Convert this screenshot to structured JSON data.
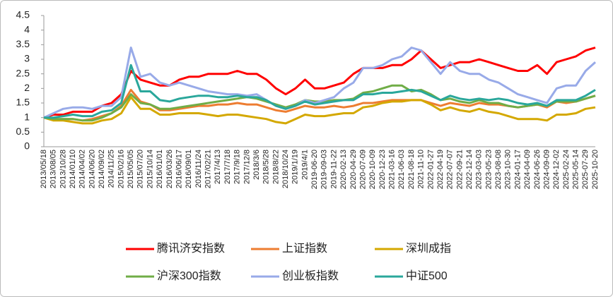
{
  "chart_data": {
    "type": "line",
    "categories": [
      "2013/05/18",
      "2013/08/05",
      "2013/10/28",
      "2014/01/10",
      "2014/04/02",
      "2014/06/20",
      "2014/09/02",
      "2014/11/25",
      "2015/02/16",
      "2015/05/05",
      "2015/07/20",
      "2015/10/14",
      "2016/01/01",
      "2016/03/26",
      "2016/06/17",
      "2016/09/01",
      "2016/11/24",
      "2017/02/21",
      "2017/4/13",
      "2017/7/18",
      "2017/9/18",
      "2017/12/8",
      "2018/3/6",
      "2018/5/28",
      "2018/8/22",
      "2018/10/24",
      "2019/1/19",
      "2019/4/1",
      "2019-06-20",
      "2019-09-03",
      "2019-11-22",
      "2020-02-13",
      "2020-04-29",
      "2020-07-09",
      "2020-10-09",
      "2020-12-23",
      "2021-03-16",
      "2021-06-03",
      "2021-08-18",
      "2021-11-10",
      "2022-01-27",
      "2022-04-19",
      "2022-07-07",
      "2022-09-21",
      "2022-12-14",
      "2023-03-03",
      "2023-05-23",
      "2023-08-08",
      "2023-10-30",
      "2024-01-17",
      "2024-04-09",
      "2024-06-26",
      "2024-09-09",
      "2024-12-02",
      "2025-02-24",
      "2025-05-14",
      "2025-07-29",
      "2025-10-20"
    ],
    "series": [
      {
        "name": "腾讯济安指数",
        "color": "#ff0000",
        "values": [
          1.0,
          1.1,
          1.1,
          1.2,
          1.2,
          1.2,
          1.4,
          1.5,
          1.8,
          2.6,
          2.3,
          2.2,
          2.1,
          2.1,
          2.3,
          2.4,
          2.4,
          2.5,
          2.5,
          2.5,
          2.6,
          2.5,
          2.5,
          2.3,
          2.0,
          1.8,
          2.0,
          2.3,
          2.0,
          2.0,
          2.1,
          2.2,
          2.5,
          2.7,
          2.7,
          2.7,
          2.8,
          2.8,
          3.0,
          3.3,
          3.0,
          2.7,
          2.8,
          2.9,
          2.9,
          3.0,
          2.9,
          2.8,
          2.7,
          2.6,
          2.6,
          2.8,
          2.5,
          2.9,
          3.0,
          3.1,
          3.3,
          3.4
        ]
      },
      {
        "name": "上证指数",
        "color": "#ed7d31",
        "values": [
          1.0,
          0.95,
          0.95,
          0.95,
          0.9,
          0.95,
          1.05,
          1.15,
          1.4,
          1.95,
          1.55,
          1.45,
          1.25,
          1.25,
          1.3,
          1.35,
          1.4,
          1.4,
          1.45,
          1.45,
          1.5,
          1.45,
          1.45,
          1.35,
          1.25,
          1.2,
          1.3,
          1.4,
          1.35,
          1.35,
          1.4,
          1.35,
          1.4,
          1.5,
          1.5,
          1.55,
          1.6,
          1.6,
          1.6,
          1.6,
          1.5,
          1.4,
          1.5,
          1.45,
          1.4,
          1.5,
          1.45,
          1.45,
          1.4,
          1.35,
          1.4,
          1.45,
          1.35,
          1.55,
          1.5,
          1.55,
          1.65,
          1.75
        ]
      },
      {
        "name": "深圳成指",
        "color": "#d4a800",
        "values": [
          1.0,
          0.9,
          0.9,
          0.85,
          0.8,
          0.8,
          0.9,
          0.95,
          1.15,
          1.7,
          1.3,
          1.3,
          1.1,
          1.1,
          1.15,
          1.15,
          1.15,
          1.1,
          1.05,
          1.1,
          1.1,
          1.05,
          1.0,
          0.95,
          0.85,
          0.8,
          0.95,
          1.1,
          1.05,
          1.05,
          1.1,
          1.15,
          1.15,
          1.35,
          1.4,
          1.5,
          1.55,
          1.55,
          1.6,
          1.6,
          1.45,
          1.25,
          1.35,
          1.25,
          1.2,
          1.3,
          1.2,
          1.15,
          1.05,
          0.95,
          0.95,
          0.95,
          0.9,
          1.1,
          1.1,
          1.15,
          1.3,
          1.35
        ]
      },
      {
        "name": "沪深300指数",
        "color": "#70ad47",
        "values": [
          1.0,
          0.95,
          0.95,
          0.95,
          0.9,
          0.9,
          1.0,
          1.15,
          1.35,
          1.8,
          1.5,
          1.45,
          1.3,
          1.3,
          1.35,
          1.4,
          1.45,
          1.5,
          1.55,
          1.6,
          1.65,
          1.7,
          1.65,
          1.55,
          1.45,
          1.35,
          1.45,
          1.6,
          1.55,
          1.55,
          1.6,
          1.6,
          1.65,
          1.85,
          1.9,
          2.0,
          2.1,
          2.1,
          1.9,
          1.95,
          1.8,
          1.6,
          1.65,
          1.55,
          1.5,
          1.6,
          1.5,
          1.5,
          1.4,
          1.35,
          1.4,
          1.45,
          1.4,
          1.55,
          1.55,
          1.55,
          1.65,
          1.75
        ]
      },
      {
        "name": "创业板指数",
        "color": "#98aae8",
        "values": [
          1.0,
          1.15,
          1.3,
          1.35,
          1.35,
          1.3,
          1.4,
          1.4,
          1.7,
          3.4,
          2.4,
          2.5,
          2.2,
          2.1,
          2.2,
          2.1,
          2.0,
          1.9,
          1.85,
          1.8,
          1.8,
          1.75,
          1.8,
          1.6,
          1.4,
          1.3,
          1.4,
          1.6,
          1.5,
          1.6,
          1.7,
          2.0,
          2.2,
          2.7,
          2.7,
          2.8,
          3.0,
          3.1,
          3.4,
          3.3,
          2.9,
          2.5,
          2.9,
          2.6,
          2.5,
          2.5,
          2.3,
          2.2,
          2.0,
          1.8,
          1.7,
          1.6,
          1.5,
          2.0,
          2.1,
          2.1,
          2.6,
          2.9
        ]
      },
      {
        "name": "中证500",
        "color": "#2aa79b",
        "values": [
          1.0,
          1.0,
          1.05,
          1.1,
          1.05,
          1.05,
          1.2,
          1.25,
          1.5,
          2.8,
          1.9,
          1.9,
          1.6,
          1.55,
          1.65,
          1.7,
          1.75,
          1.75,
          1.7,
          1.7,
          1.75,
          1.7,
          1.7,
          1.6,
          1.4,
          1.3,
          1.4,
          1.55,
          1.45,
          1.5,
          1.55,
          1.6,
          1.6,
          1.8,
          1.8,
          1.85,
          1.85,
          1.9,
          1.95,
          1.9,
          1.75,
          1.6,
          1.75,
          1.65,
          1.6,
          1.65,
          1.6,
          1.65,
          1.6,
          1.5,
          1.45,
          1.5,
          1.4,
          1.6,
          1.6,
          1.6,
          1.75,
          1.95
        ]
      }
    ],
    "ylim": [
      0,
      4.5
    ],
    "yticks": [
      0,
      0.5,
      1,
      1.5,
      2,
      2.5,
      3,
      3.5,
      4,
      4.5
    ],
    "grid": false
  }
}
